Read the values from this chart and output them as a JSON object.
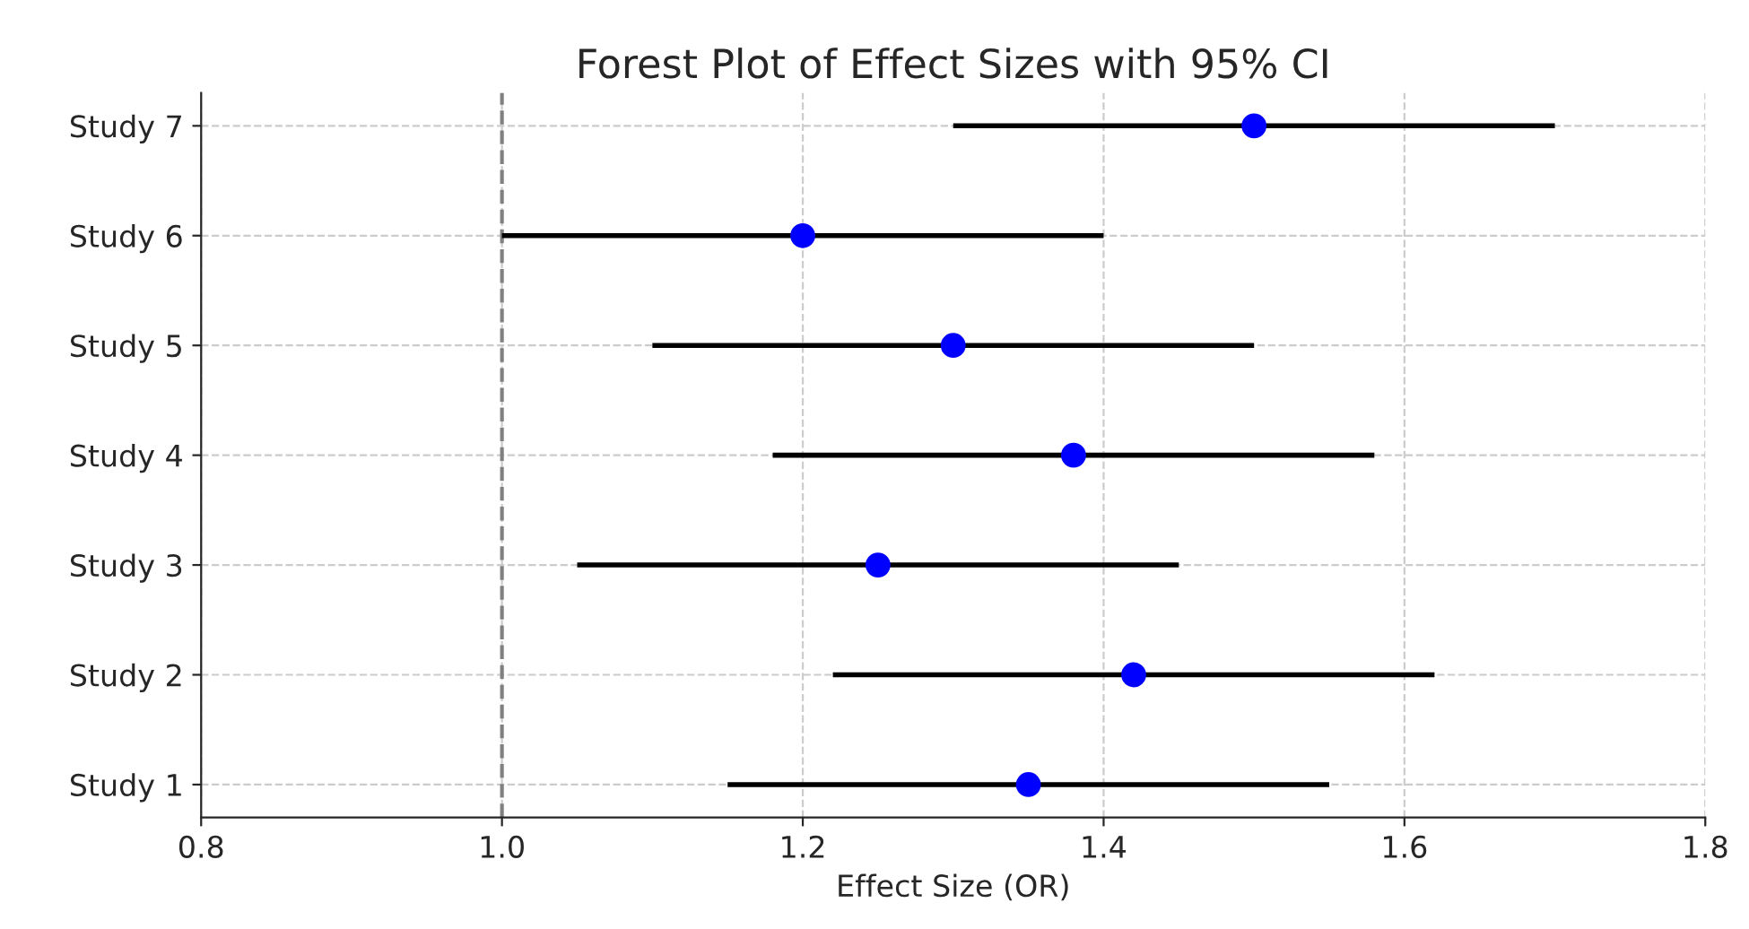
{
  "chart_data": {
    "type": "scatter",
    "orientation": "horizontal",
    "title": "Forest Plot of Effect Sizes with 95% CI",
    "xlabel": "Effect Size (OR)",
    "categories": [
      "Study 7",
      "Study 6",
      "Study 5",
      "Study 4",
      "Study 3",
      "Study 2",
      "Study 1"
    ],
    "color": "#0000ff",
    "values": [
      1.5,
      1.2,
      1.3,
      1.38,
      1.25,
      1.42,
      1.35
    ],
    "errors": [
      [
        1.3,
        1.7
      ],
      [
        1.0,
        1.4
      ],
      [
        1.1,
        1.5
      ],
      [
        1.18,
        1.58
      ],
      [
        1.05,
        1.45
      ],
      [
        1.22,
        1.62
      ],
      [
        1.15,
        1.55
      ]
    ],
    "xlim": [
      0.8,
      1.8
    ],
    "xticks": [
      {
        "value": 0.8,
        "label": "0.8"
      },
      {
        "value": 1.0,
        "label": "1.0"
      },
      {
        "value": 1.2,
        "label": "1.2"
      },
      {
        "value": 1.4,
        "label": "1.4"
      },
      {
        "value": 1.6,
        "label": "1.6"
      },
      {
        "value": 1.8,
        "label": "1.8"
      }
    ],
    "ref_lines": [
      {
        "axis": "x",
        "value": 1.0,
        "color": "#808080",
        "line_style": "dashed"
      }
    ],
    "grid": true,
    "marker": "circle"
  }
}
